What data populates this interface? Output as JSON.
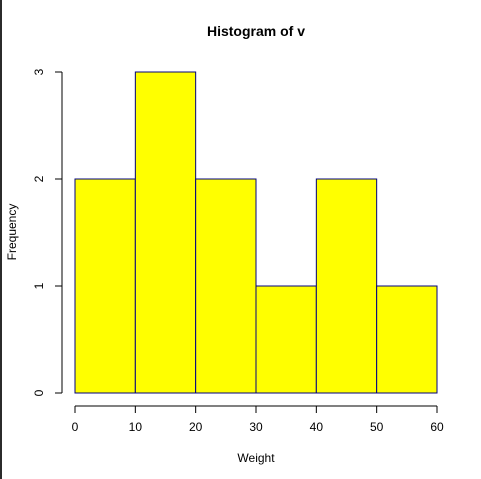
{
  "chart_data": {
    "type": "bar",
    "title": "Histogram of v",
    "xlabel": "Weight",
    "ylabel": "Frequency",
    "bins": [
      {
        "start": 0,
        "end": 10,
        "count": 2
      },
      {
        "start": 10,
        "end": 20,
        "count": 3
      },
      {
        "start": 20,
        "end": 30,
        "count": 2
      },
      {
        "start": 30,
        "end": 40,
        "count": 1
      },
      {
        "start": 40,
        "end": 50,
        "count": 2
      },
      {
        "start": 50,
        "end": 60,
        "count": 1
      }
    ],
    "xlim": [
      0,
      60
    ],
    "ylim": [
      0,
      3
    ],
    "x_ticks": [
      "0",
      "10",
      "20",
      "30",
      "40",
      "50",
      "60"
    ],
    "y_ticks": [
      "0",
      "1",
      "2",
      "3"
    ],
    "bar_color": "#ffff00",
    "bar_border_color": "#000080",
    "grid": false,
    "legend": "none"
  }
}
